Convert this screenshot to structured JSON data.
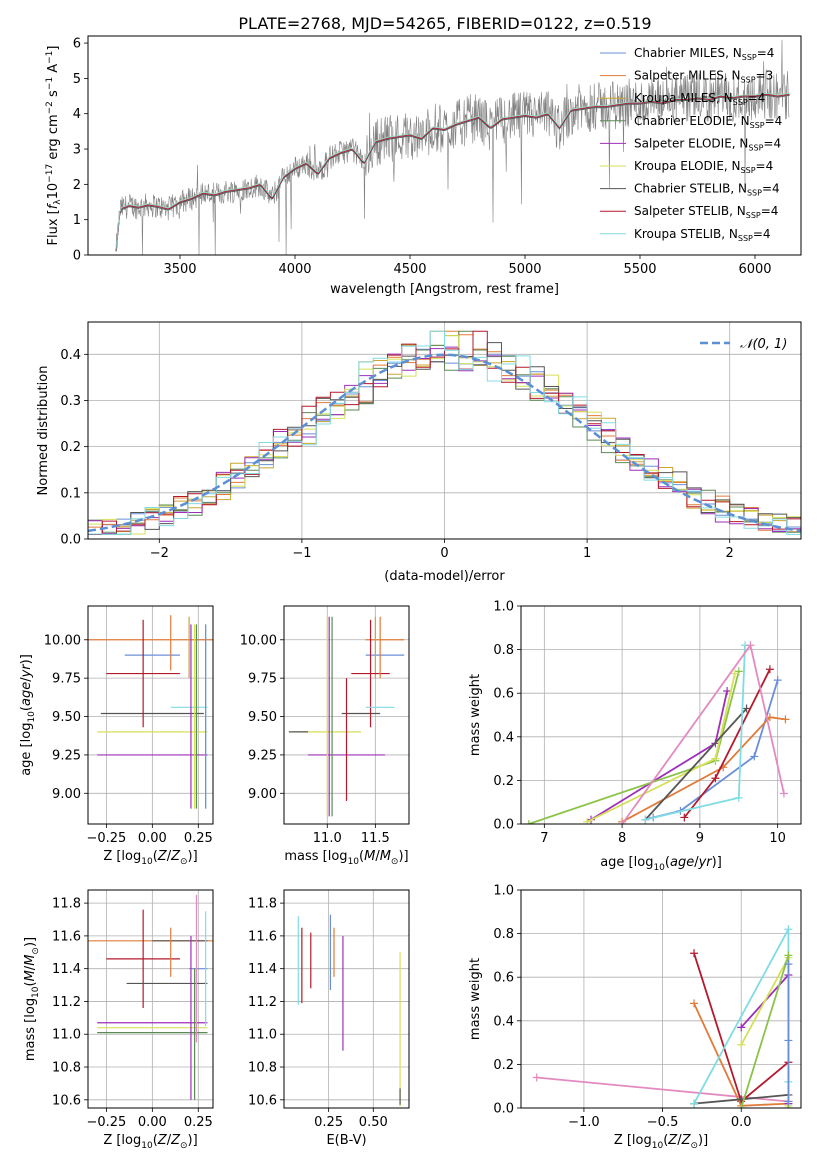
{
  "title": "PLATE=2768, MJD=54265, FIBERID=0122, z=0.519",
  "colors": {
    "grid": "#b0b0b0",
    "spectrum": "#808080",
    "normal": "#5b8fd6",
    "series": [
      "#6a8fd8",
      "#e07b39",
      "#c9a531",
      "#5c8a55",
      "#9e2fb8",
      "#d5e05a",
      "#555555",
      "#b5192c",
      "#80dce4",
      "#e38ac0",
      "#8bc34a",
      "#9cc9e8"
    ]
  },
  "chart_data": [
    {
      "id": "spectrum",
      "type": "line",
      "xlabel": "wavelength [Angstrom, rest frame]",
      "ylabel": "Flux [f_λ 10^-17 erg cm^-2 s^-1 A^-1]",
      "xlim": [
        3100,
        6200
      ],
      "ylim": [
        0,
        6.2
      ],
      "xticks": [
        3500,
        4000,
        4500,
        5000,
        5500,
        6000
      ],
      "yticks": [
        0,
        1,
        2,
        3,
        4,
        5,
        6
      ],
      "grid": false,
      "legend_position": "top-right",
      "legend": [
        {
          "text": "Chabrier MILES, N",
          "sub": "SSP",
          "tail": "=4"
        },
        {
          "text": "Salpeter MILES, N",
          "sub": "SSP",
          "tail": "=3"
        },
        {
          "text": "Kroupa MILES, N",
          "sub": "SSP",
          "tail": "=4"
        },
        {
          "text": "Chabrier ELODIE, N",
          "sub": "SSP",
          "tail": "=4"
        },
        {
          "text": "Salpeter ELODIE, N",
          "sub": "SSP",
          "tail": "=4"
        },
        {
          "text": "Kroupa ELODIE, N",
          "sub": "SSP",
          "tail": "=4"
        },
        {
          "text": "Chabrier STELIB, N",
          "sub": "SSP",
          "tail": "=4"
        },
        {
          "text": "Salpeter STELIB, N",
          "sub": "SSP",
          "tail": "=4"
        },
        {
          "text": "Kroupa STELIB, N",
          "sub": "SSP",
          "tail": "=4"
        }
      ],
      "model_x": [
        3220,
        3240,
        3280,
        3320,
        3360,
        3400,
        3450,
        3500,
        3550,
        3600,
        3650,
        3700,
        3750,
        3800,
        3850,
        3900,
        3950,
        4000,
        4050,
        4100,
        4150,
        4200,
        4250,
        4300,
        4350,
        4400,
        4450,
        4500,
        4550,
        4600,
        4650,
        4700,
        4750,
        4800,
        4850,
        4900,
        4950,
        5000,
        5050,
        5100,
        5150,
        5200,
        5250,
        5300,
        5350,
        5400,
        5450,
        5500,
        5550,
        5600,
        5650,
        5700,
        5750,
        5800,
        5850,
        5900,
        5950,
        6000,
        6050,
        6100,
        6150
      ],
      "model_y": [
        0,
        1.3,
        1.4,
        1.35,
        1.42,
        1.38,
        1.3,
        1.5,
        1.6,
        1.75,
        1.7,
        1.8,
        1.85,
        1.9,
        2.0,
        1.6,
        2.2,
        2.45,
        2.6,
        2.3,
        2.75,
        2.9,
        3.0,
        2.6,
        3.2,
        3.3,
        3.35,
        3.4,
        3.3,
        3.6,
        3.55,
        3.7,
        3.8,
        3.9,
        3.6,
        3.85,
        3.9,
        3.95,
        3.9,
        4.0,
        3.6,
        4.1,
        4.15,
        4.2,
        4.2,
        4.25,
        4.3,
        4.3,
        4.35,
        4.3,
        4.4,
        4.4,
        4.45,
        4.4,
        4.5,
        4.45,
        4.5,
        4.5,
        4.55,
        4.5,
        4.55
      ]
    },
    {
      "id": "residuals",
      "type": "area",
      "xlabel": "(data-model)/error",
      "ylabel": "Normed distribution",
      "xlim": [
        -2.5,
        2.5
      ],
      "ylim": [
        0,
        0.47
      ],
      "xticks": [
        -2,
        -1,
        0,
        1,
        2
      ],
      "yticks": [
        0.0,
        0.1,
        0.2,
        0.3,
        0.4
      ],
      "grid": true,
      "legend_position": "top-right",
      "legend": [
        "𝒩(0, 1)"
      ]
    },
    {
      "id": "age-vs-Z",
      "type": "scatter",
      "xlabel": "Z [log10(Z/Z⊙)]",
      "ylabel": "age  [log10(age/yr)]",
      "xlim": [
        -0.35,
        0.33
      ],
      "ylim": [
        8.8,
        10.22
      ],
      "xticks": [
        -0.25,
        0.0,
        0.25
      ],
      "yticks": [
        9.0,
        9.25,
        9.5,
        9.75,
        10.0
      ],
      "grid": true,
      "points": [
        {
          "s": 0,
          "x": 0.0,
          "y": 9.9,
          "xe": 0.15,
          "ye": 0.0
        },
        {
          "s": 1,
          "x": 0.0,
          "y": 10.0,
          "xe": 0.35,
          "ye": 0.0
        },
        {
          "s": 2,
          "x": 0.2,
          "y": 9.95,
          "xe": 0.0,
          "ye": 0.2
        },
        {
          "s": 6,
          "x": 0.0,
          "y": 9.52,
          "xe": 0.28,
          "ye": 0.0
        },
        {
          "s": 7,
          "x": -0.05,
          "y": 9.78,
          "xe": 0.2,
          "ye": 0.35
        },
        {
          "s": 8,
          "x": 0.2,
          "y": 9.56,
          "xe": 0.1,
          "ye": 0.0
        },
        {
          "s": 5,
          "x": 0.0,
          "y": 9.4,
          "xe": 0.3,
          "ye": 0.0
        },
        {
          "s": 4,
          "x": 0.0,
          "y": 9.25,
          "xe": 0.3,
          "ye": 0.0
        },
        {
          "s": 4,
          "x": 0.21,
          "y": 9.5,
          "xe": 0.0,
          "ye": 0.6
        },
        {
          "s": 3,
          "x": 0.24,
          "y": 9.5,
          "xe": 0.0,
          "ye": 0.6
        },
        {
          "s": 5,
          "x": 0.23,
          "y": 9.5,
          "xe": 0.0,
          "ye": 0.6
        },
        {
          "s": 8,
          "x": 0.29,
          "y": 9.5,
          "xe": 0.0,
          "ye": 0.6
        },
        {
          "s": 0,
          "x": 0.29,
          "y": 9.5,
          "xe": 0.0,
          "ye": 0.6
        },
        {
          "s": 1,
          "x": 0.1,
          "y": 9.98,
          "xe": 0.0,
          "ye": 0.18
        }
      ]
    },
    {
      "id": "age-vs-mass",
      "type": "scatter",
      "xlabel": "mass [log10(M/M⊙)]",
      "ylabel": "",
      "xlim": [
        10.55,
        11.85
      ],
      "ylim": [
        8.8,
        10.22
      ],
      "xticks": [
        11.0,
        11.5
      ],
      "yticks": [
        9.0,
        9.25,
        9.5,
        9.75,
        10.0
      ],
      "grid": true,
      "points": [
        {
          "s": 0,
          "x": 11.6,
          "y": 9.9,
          "xe": 0.2,
          "ye": 0.0
        },
        {
          "s": 1,
          "x": 11.6,
          "y": 10.0,
          "xe": 0.2,
          "ye": 0.0
        },
        {
          "s": 2,
          "x": 11.5,
          "y": 9.95,
          "xe": 0.0,
          "ye": 0.2
        },
        {
          "s": 6,
          "x": 11.35,
          "y": 9.52,
          "xe": 0.2,
          "ye": 0.0
        },
        {
          "s": 7,
          "x": 11.45,
          "y": 9.78,
          "xe": 0.2,
          "ye": 0.35
        },
        {
          "s": 8,
          "x": 11.55,
          "y": 9.56,
          "xe": 0.15,
          "ye": 0.0
        },
        {
          "s": 5,
          "x": 11.0,
          "y": 9.4,
          "xe": 0.35,
          "ye": 0.0
        },
        {
          "s": 4,
          "x": 11.2,
          "y": 9.25,
          "xe": 0.4,
          "ye": 0.0
        },
        {
          "s": 6,
          "x": 10.7,
          "y": 9.4,
          "xe": 0.1,
          "ye": 0.0
        },
        {
          "s": 3,
          "x": 11.05,
          "y": 9.5,
          "xe": 0.0,
          "ye": 0.65
        },
        {
          "s": 5,
          "x": 11.0,
          "y": 9.5,
          "xe": 0.0,
          "ye": 0.65
        },
        {
          "s": 4,
          "x": 11.02,
          "y": 9.5,
          "xe": 0.0,
          "ye": 0.65
        },
        {
          "s": 7,
          "x": 11.2,
          "y": 9.35,
          "xe": 0.0,
          "ye": 0.4
        },
        {
          "s": 1,
          "x": 11.55,
          "y": 9.95,
          "xe": 0.0,
          "ye": 0.2
        }
      ]
    },
    {
      "id": "massweight-vs-age",
      "type": "line",
      "xlabel": "age  [log10(age/yr)]",
      "ylabel": "mass weight",
      "xlim": [
        6.7,
        10.3
      ],
      "ylim": [
        0,
        1.0
      ],
      "xticks": [
        7,
        8,
        9,
        10
      ],
      "yticks": [
        0.0,
        0.2,
        0.4,
        0.6,
        0.8,
        1.0
      ],
      "grid": true,
      "series": [
        {
          "s": 0,
          "x": [
            8.4,
            8.75,
            9.7,
            10.0
          ],
          "y": [
            0.03,
            0.06,
            0.31,
            0.66
          ]
        },
        {
          "s": 1,
          "x": 8.0,
          "xs": [
            8.0,
            9.3,
            9.9,
            10.1
          ],
          "y": [
            0.01,
            0.26,
            0.49,
            0.48
          ]
        },
        {
          "s": 4,
          "x": [
            7.6,
            9.2,
            9.35
          ],
          "y": [
            0.02,
            0.37,
            0.61
          ]
        },
        {
          "s": 10,
          "x": [
            6.8,
            9.2,
            9.5
          ],
          "y": [
            0.0,
            0.29,
            0.7
          ]
        },
        {
          "s": 5,
          "x": [
            7.55,
            9.2,
            9.45
          ],
          "y": [
            0.01,
            0.3,
            0.69
          ]
        },
        {
          "s": 6,
          "x": [
            8.3,
            9.6
          ],
          "y": [
            0.02,
            0.53
          ]
        },
        {
          "s": 7,
          "x": [
            8.8,
            9.2,
            9.9
          ],
          "y": [
            0.03,
            0.21,
            0.71
          ]
        },
        {
          "s": 8,
          "x": [
            8.3,
            9.5,
            9.58
          ],
          "y": [
            0.02,
            0.12,
            0.82
          ]
        },
        {
          "s": 9,
          "x": [
            8.0,
            9.65,
            10.08
          ],
          "y": [
            0.0,
            0.82,
            0.14
          ]
        }
      ]
    },
    {
      "id": "mass-vs-Z",
      "type": "scatter",
      "xlabel": "Z [log10(Z/Z⊙)]",
      "ylabel": "mass [log10(M/M⊙)]",
      "xlim": [
        -0.35,
        0.33
      ],
      "ylim": [
        10.55,
        11.88
      ],
      "xticks": [
        -0.25,
        0.0,
        0.25
      ],
      "yticks": [
        10.6,
        10.8,
        11.0,
        11.2,
        11.4,
        11.6,
        11.8
      ],
      "grid": true,
      "points": [
        {
          "s": 1,
          "x": 0.0,
          "y": 11.57,
          "xe": 0.35,
          "ye": 0.0
        },
        {
          "s": 6,
          "x": 0.15,
          "y": 11.57,
          "xe": 0.15,
          "ye": 0.0
        },
        {
          "s": 7,
          "x": -0.05,
          "y": 11.46,
          "xe": 0.2,
          "ye": 0.3
        },
        {
          "s": 0,
          "x": 0.25,
          "y": 11.4,
          "xe": 0.05,
          "ye": 0.0
        },
        {
          "s": 6,
          "x": 0.08,
          "y": 11.31,
          "xe": 0.22,
          "ye": 0.0
        },
        {
          "s": 4,
          "x": 0.0,
          "y": 11.07,
          "xe": 0.3,
          "ye": 0.0
        },
        {
          "s": 5,
          "x": 0.0,
          "y": 11.04,
          "xe": 0.3,
          "ye": 0.0
        },
        {
          "s": 3,
          "x": 0.0,
          "y": 11.01,
          "xe": 0.3,
          "ye": 0.0
        },
        {
          "s": 9,
          "x": 0.24,
          "y": 11.4,
          "xe": 0.0,
          "ye": 0.45
        },
        {
          "s": 4,
          "x": 0.21,
          "y": 11.1,
          "xe": 0.0,
          "ye": 0.5
        },
        {
          "s": 3,
          "x": 0.23,
          "y": 11.0,
          "xe": 0.0,
          "ye": 0.4
        },
        {
          "s": 8,
          "x": 0.29,
          "y": 11.4,
          "xe": 0.0,
          "ye": 0.35
        },
        {
          "s": 1,
          "x": 0.1,
          "y": 11.5,
          "xe": 0.0,
          "ye": 0.15
        }
      ]
    },
    {
      "id": "mass-vs-EBV",
      "type": "scatter",
      "xlabel": "E(B-V)",
      "ylabel": "",
      "xlim": [
        0.0,
        0.7
      ],
      "ylim": [
        10.55,
        11.88
      ],
      "xticks": [
        0.25,
        0.5
      ],
      "yticks": [
        10.6,
        10.8,
        11.0,
        11.2,
        11.4,
        11.6,
        11.8
      ],
      "grid": true,
      "points": [
        {
          "s": 8,
          "x": 0.08,
          "y": 11.45,
          "xe": 0.0,
          "ye": 0.27
        },
        {
          "s": 7,
          "x": 0.1,
          "y": 11.42,
          "xe": 0.0,
          "ye": 0.23
        },
        {
          "s": 7,
          "x": 0.15,
          "y": 11.45,
          "xe": 0.0,
          "ye": 0.17
        },
        {
          "s": 0,
          "x": 0.26,
          "y": 11.5,
          "xe": 0.0,
          "ye": 0.23
        },
        {
          "s": 1,
          "x": 0.28,
          "y": 11.5,
          "xe": 0.0,
          "ye": 0.15
        },
        {
          "s": 4,
          "x": 0.33,
          "y": 11.25,
          "xe": 0.0,
          "ye": 0.35
        },
        {
          "s": 5,
          "x": 0.65,
          "y": 11.03,
          "xe": 0.0,
          "ye": 0.47
        },
        {
          "s": 6,
          "x": 0.65,
          "y": 10.62,
          "xe": 0.0,
          "ye": 0.05
        }
      ]
    },
    {
      "id": "massweight-vs-Z",
      "type": "line",
      "xlabel": "Z [log10(Z/Z⊙)]",
      "ylabel": "mass weight",
      "xlim": [
        -1.4,
        0.38
      ],
      "ylim": [
        0,
        1.0
      ],
      "xticks": [
        -1.0,
        -0.5,
        0.0
      ],
      "yticks": [
        0.0,
        0.2,
        0.4,
        0.6,
        0.8,
        1.0
      ],
      "grid": true,
      "series": [
        {
          "s": 9,
          "x": [
            -1.3,
            0.3
          ],
          "y": [
            0.14,
            0.03
          ]
        },
        {
          "s": 7,
          "x": [
            -0.3,
            0.0,
            0.3
          ],
          "y": [
            0.71,
            0.03,
            0.21
          ]
        },
        {
          "s": 1,
          "x": [
            -0.3,
            0.0,
            0.3
          ],
          "y": [
            0.48,
            0.01,
            0.02
          ]
        },
        {
          "s": 6,
          "x": [
            -0.3,
            0.0,
            0.3
          ],
          "y": [
            0.02,
            0.04,
            0.06
          ]
        },
        {
          "s": 8,
          "x": [
            -0.3,
            0.3,
            0.3
          ],
          "y": [
            0.02,
            0.82,
            0.12
          ]
        },
        {
          "s": 4,
          "x": [
            0.0,
            0.3,
            0.3
          ],
          "y": [
            0.37,
            0.61,
            0.02
          ]
        },
        {
          "s": 5,
          "x": [
            0.0,
            0.3,
            0.3
          ],
          "y": [
            0.29,
            0.69,
            0.01
          ]
        },
        {
          "s": 10,
          "x": [
            0.0,
            0.3,
            0.3
          ],
          "y": [
            0.0,
            0.7,
            0.0
          ]
        },
        {
          "s": 0,
          "x": [
            0.3,
            0.3,
            0.3
          ],
          "y": [
            0.03,
            0.31,
            0.66
          ]
        }
      ]
    }
  ]
}
